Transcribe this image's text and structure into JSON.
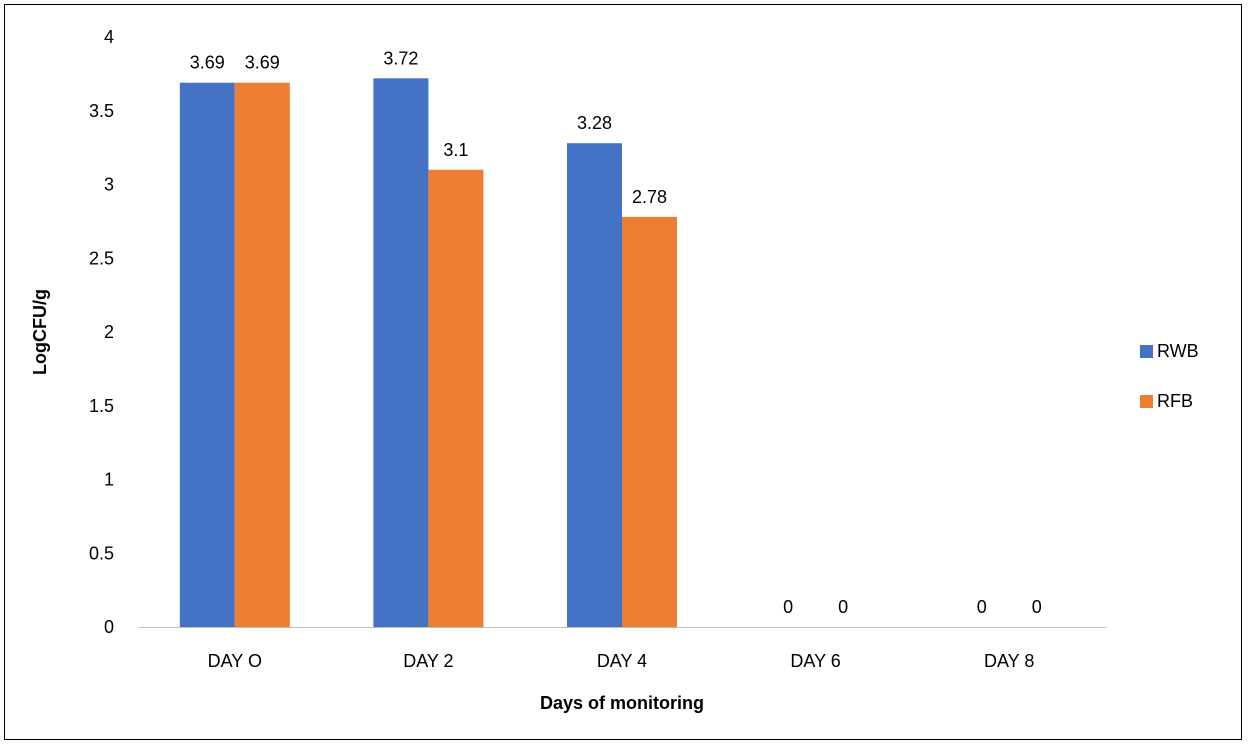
{
  "chart_data": {
    "type": "bar",
    "categories": [
      "DAY O",
      "DAY 2",
      "DAY 4",
      "DAY 6",
      "DAY 8"
    ],
    "series": [
      {
        "name": "RWB",
        "color": "#4472C4",
        "values": [
          3.69,
          3.72,
          3.28,
          0,
          0
        ]
      },
      {
        "name": "RFB",
        "color": "#ED7D31",
        "values": [
          3.69,
          3.1,
          2.78,
          0,
          0
        ]
      }
    ],
    "xlabel": "Days of monitoring",
    "ylabel": "LogCFU/g",
    "ylim": [
      0,
      4
    ],
    "yticks": [
      "0",
      "0.5",
      "1",
      "1.5",
      "2",
      "2.5",
      "3",
      "3.5",
      "4"
    ],
    "data_labels": true,
    "grid": false,
    "legend_position": "right"
  }
}
